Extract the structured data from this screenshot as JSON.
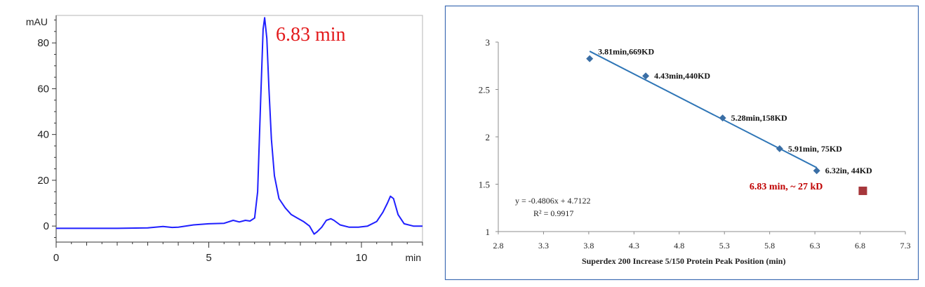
{
  "chart_data": [
    {
      "type": "line",
      "xlabel": "min",
      "ylabel": "mAU",
      "xlim": [
        0,
        12
      ],
      "ylim": [
        -7,
        92
      ],
      "x_ticks": [
        0,
        5,
        10
      ],
      "y_ticks": [
        0,
        20,
        40,
        60,
        80
      ],
      "annotation": "6.83 min",
      "line_color": "#1f1fff",
      "annotation_color": "#e31a1c",
      "series": [
        {
          "x": [
            0,
            1,
            2,
            3,
            3.5,
            3.8,
            4,
            4.5,
            5,
            5.5,
            5.8,
            6.0,
            6.2,
            6.35,
            6.5,
            6.6,
            6.7,
            6.78,
            6.83,
            6.9,
            6.97,
            7.05,
            7.15,
            7.3,
            7.5,
            7.7,
            7.9,
            8.1,
            8.3,
            8.45,
            8.55,
            8.7,
            8.85,
            9.0,
            9.1,
            9.3,
            9.6,
            9.9,
            10.2,
            10.5,
            10.7,
            10.85,
            10.95,
            11.05,
            11.2,
            11.4,
            11.7,
            12
          ],
          "y": [
            -1,
            -1,
            -1,
            -0.8,
            -0.2,
            -0.6,
            -0.5,
            0.5,
            1.0,
            1.2,
            2.5,
            1.8,
            2.5,
            2.2,
            3.5,
            15,
            55,
            86,
            91,
            82,
            60,
            38,
            22,
            12,
            8,
            5,
            3.5,
            2,
            0,
            -3.5,
            -2.5,
            -0.5,
            2.5,
            3.2,
            2.5,
            0.5,
            -0.5,
            -0.5,
            0,
            2,
            6,
            10,
            13,
            12,
            5,
            1,
            0,
            0
          ]
        }
      ]
    },
    {
      "type": "scatter",
      "xlabel": "Superdex 200 Increase 5/150  Protein Peak Position (min)",
      "ylabel": "",
      "xlim": [
        2.8,
        7.3
      ],
      "ylim": [
        1,
        3
      ],
      "x_ticks": [
        2.8,
        3.3,
        3.8,
        4.3,
        4.8,
        5.3,
        5.8,
        6.3,
        6.8,
        7.3
      ],
      "x_tick_labels": [
        "2.8",
        "3.3",
        "3.8",
        "4.3",
        "4.8",
        "5.3",
        "5.8",
        "6.3",
        "6.8",
        "7.3"
      ],
      "y_ticks": [
        1,
        1.5,
        2,
        2.5,
        3
      ],
      "y_tick_labels": [
        "1",
        "1.5",
        "2",
        "2.5",
        "3"
      ],
      "equation": "y = -0.4806x + 4.7122",
      "r_squared": "R² = 0.9917",
      "trendline": {
        "slope": -0.4806,
        "intercept": 4.7122,
        "x_range": [
          3.81,
          6.32
        ]
      },
      "standards_color": "#3a6ea5",
      "trend_color": "#2e75b6",
      "unknown_color": "#a6373b",
      "series": [
        {
          "x": [
            3.81,
            4.43,
            5.28,
            5.91,
            6.32
          ],
          "y": [
            2.825,
            2.643,
            2.199,
            1.875,
            1.643
          ],
          "labels": [
            "3.81min,669KD",
            "4.43min,440KD",
            "5.28min,158KD",
            "5.91min, 75KD",
            "6.32in, 44KD"
          ]
        },
        {
          "x": [
            6.83
          ],
          "y": [
            1.43
          ],
          "labels": [
            "6.83 min, ~ 27 kD"
          ]
        }
      ]
    }
  ]
}
